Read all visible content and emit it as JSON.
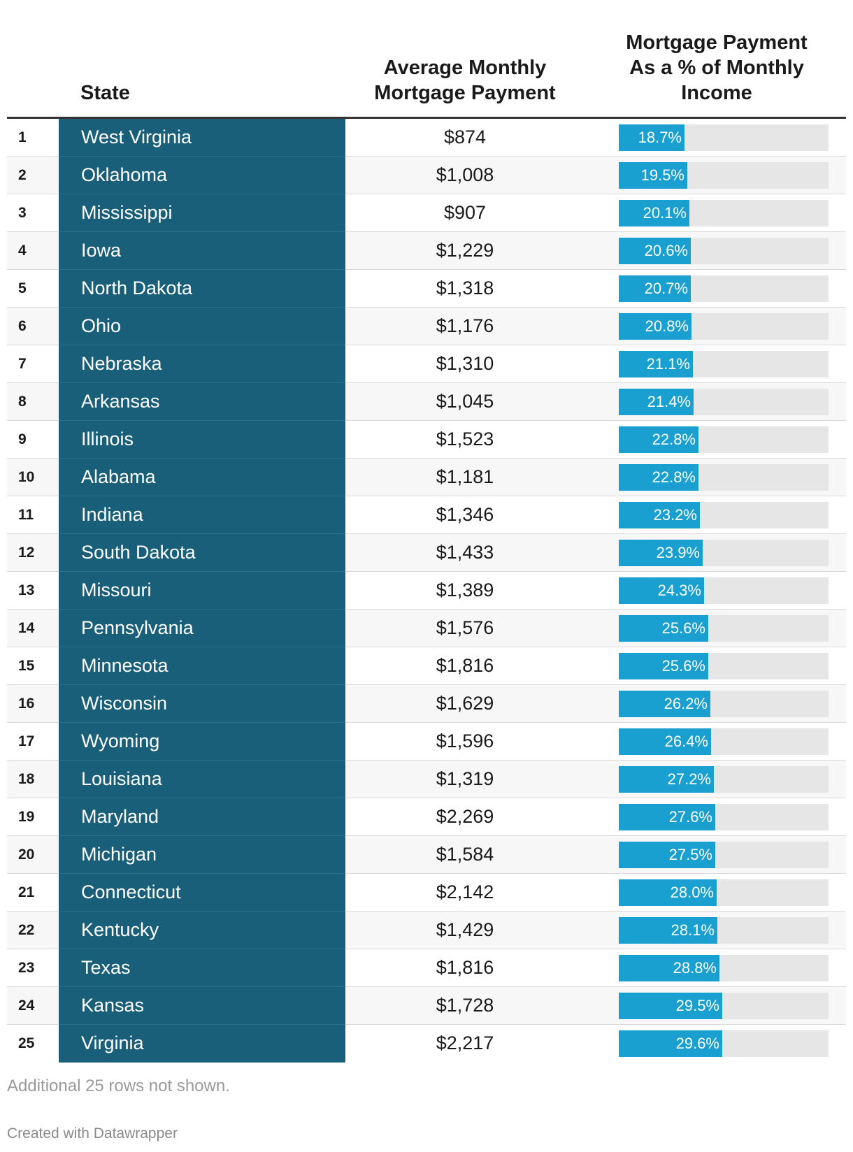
{
  "header": {
    "state_label": "State",
    "payment_label_line1": "Average Monthly",
    "payment_label_line2": "Mortgage Payment",
    "pct_label_line1": "Mortgage Payment",
    "pct_label_line2": "As a % of Monthly",
    "pct_label_line3": "Income"
  },
  "colors": {
    "state_bg": "#1a5f7a",
    "bar_fill": "#1a9fd1",
    "bar_track": "#e6e6e6"
  },
  "chart_data": {
    "type": "table",
    "title": "",
    "columns": [
      "",
      "State",
      "Average Monthly Mortgage Payment",
      "Mortgage Payment As a % of Monthly Income"
    ],
    "bar_max_percent": 60,
    "rows": [
      {
        "rank": "1",
        "state": "West Virginia",
        "payment": "$874",
        "pct": 18.7,
        "pct_label": "18.7%"
      },
      {
        "rank": "2",
        "state": "Oklahoma",
        "payment": "$1,008",
        "pct": 19.5,
        "pct_label": "19.5%"
      },
      {
        "rank": "3",
        "state": "Mississippi",
        "payment": "$907",
        "pct": 20.1,
        "pct_label": "20.1%"
      },
      {
        "rank": "4",
        "state": "Iowa",
        "payment": "$1,229",
        "pct": 20.6,
        "pct_label": "20.6%"
      },
      {
        "rank": "5",
        "state": "North Dakota",
        "payment": "$1,318",
        "pct": 20.7,
        "pct_label": "20.7%"
      },
      {
        "rank": "6",
        "state": "Ohio",
        "payment": "$1,176",
        "pct": 20.8,
        "pct_label": "20.8%"
      },
      {
        "rank": "7",
        "state": "Nebraska",
        "payment": "$1,310",
        "pct": 21.1,
        "pct_label": "21.1%"
      },
      {
        "rank": "8",
        "state": "Arkansas",
        "payment": "$1,045",
        "pct": 21.4,
        "pct_label": "21.4%"
      },
      {
        "rank": "9",
        "state": "Illinois",
        "payment": "$1,523",
        "pct": 22.8,
        "pct_label": "22.8%"
      },
      {
        "rank": "10",
        "state": "Alabama",
        "payment": "$1,181",
        "pct": 22.8,
        "pct_label": "22.8%"
      },
      {
        "rank": "11",
        "state": "Indiana",
        "payment": "$1,346",
        "pct": 23.2,
        "pct_label": "23.2%"
      },
      {
        "rank": "12",
        "state": "South Dakota",
        "payment": "$1,433",
        "pct": 23.9,
        "pct_label": "23.9%"
      },
      {
        "rank": "13",
        "state": "Missouri",
        "payment": "$1,389",
        "pct": 24.3,
        "pct_label": "24.3%"
      },
      {
        "rank": "14",
        "state": "Pennsylvania",
        "payment": "$1,576",
        "pct": 25.6,
        "pct_label": "25.6%"
      },
      {
        "rank": "15",
        "state": "Minnesota",
        "payment": "$1,816",
        "pct": 25.6,
        "pct_label": "25.6%"
      },
      {
        "rank": "16",
        "state": "Wisconsin",
        "payment": "$1,629",
        "pct": 26.2,
        "pct_label": "26.2%"
      },
      {
        "rank": "17",
        "state": "Wyoming",
        "payment": "$1,596",
        "pct": 26.4,
        "pct_label": "26.4%"
      },
      {
        "rank": "18",
        "state": "Louisiana",
        "payment": "$1,319",
        "pct": 27.2,
        "pct_label": "27.2%"
      },
      {
        "rank": "19",
        "state": "Maryland",
        "payment": "$2,269",
        "pct": 27.6,
        "pct_label": "27.6%"
      },
      {
        "rank": "20",
        "state": "Michigan",
        "payment": "$1,584",
        "pct": 27.5,
        "pct_label": "27.5%"
      },
      {
        "rank": "21",
        "state": "Connecticut",
        "payment": "$2,142",
        "pct": 28.0,
        "pct_label": "28.0%"
      },
      {
        "rank": "22",
        "state": "Kentucky",
        "payment": "$1,429",
        "pct": 28.1,
        "pct_label": "28.1%"
      },
      {
        "rank": "23",
        "state": "Texas",
        "payment": "$1,816",
        "pct": 28.8,
        "pct_label": "28.8%"
      },
      {
        "rank": "24",
        "state": "Kansas",
        "payment": "$1,728",
        "pct": 29.5,
        "pct_label": "29.5%"
      },
      {
        "rank": "25",
        "state": "Virginia",
        "payment": "$2,217",
        "pct": 29.6,
        "pct_label": "29.6%"
      }
    ]
  },
  "footer": {
    "note": "Additional 25 rows not shown.",
    "credit": "Created with Datawrapper"
  }
}
